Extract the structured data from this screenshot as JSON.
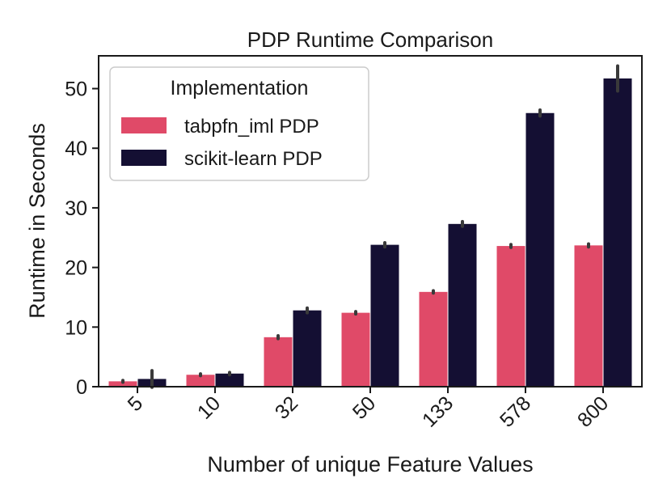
{
  "chart_data": {
    "type": "bar",
    "title": "PDP Runtime Comparison",
    "xlabel": "Number of unique Feature Values",
    "ylabel": "Runtime in Seconds",
    "categories": [
      "5",
      "10",
      "32",
      "50",
      "133",
      "578",
      "800"
    ],
    "ylim": [
      0,
      55.5
    ],
    "yticks": [
      0,
      10,
      20,
      30,
      40,
      50
    ],
    "legend": {
      "title": "Implementation",
      "placement": "top-left"
    },
    "series": [
      {
        "name": "tabpfn_iml PDP",
        "color": "#e04a68",
        "values": [
          0.9,
          2.0,
          8.3,
          12.4,
          15.9,
          23.6,
          23.7
        ],
        "error": [
          0.15,
          0.15,
          0.25,
          0.2,
          0.2,
          0.25,
          0.25
        ]
      },
      {
        "name": "scikit-learn PDP",
        "color": "#140f33",
        "values": [
          1.3,
          2.2,
          12.8,
          23.8,
          27.3,
          45.9,
          51.7
        ],
        "error": [
          1.4,
          0.2,
          0.4,
          0.35,
          0.4,
          0.5,
          2.1
        ]
      }
    ]
  }
}
